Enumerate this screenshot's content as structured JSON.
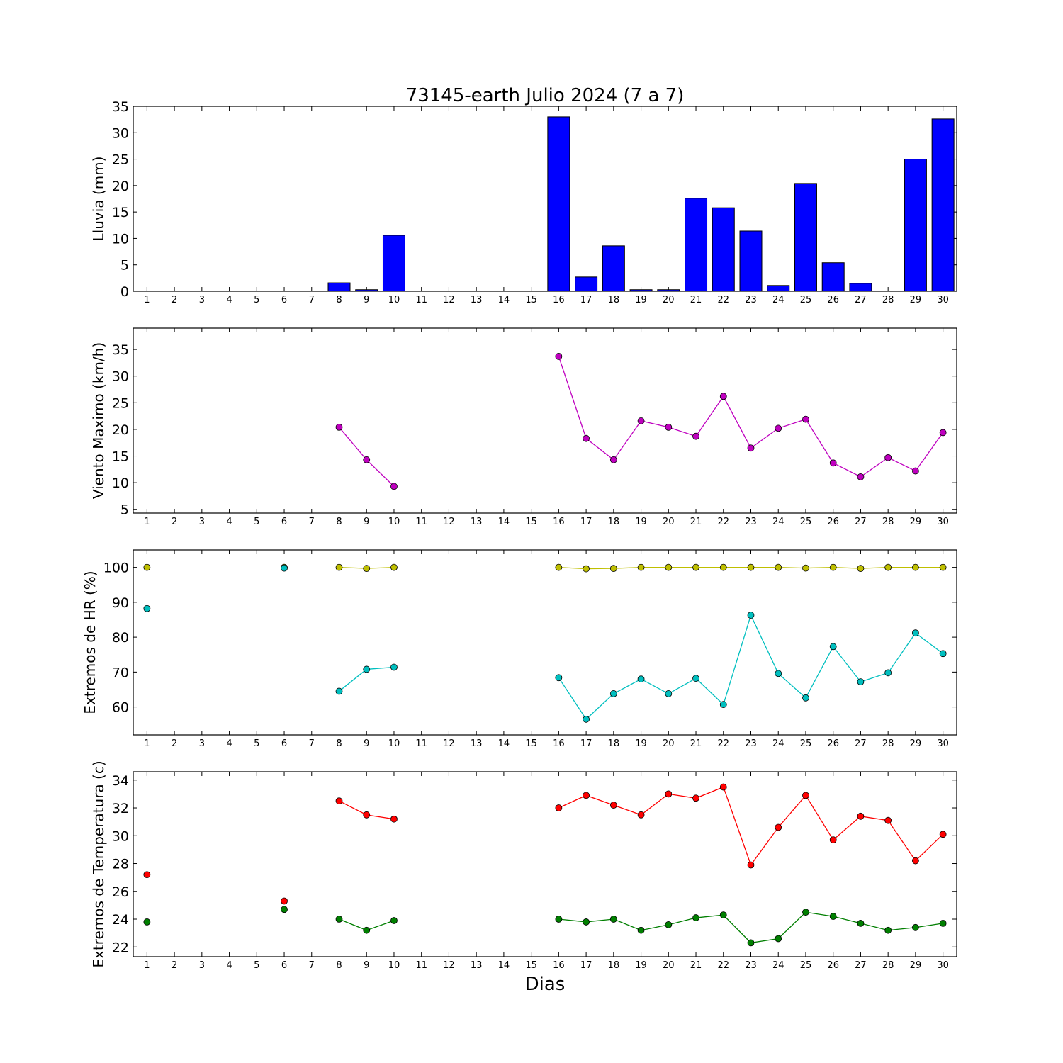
{
  "title": "73145-earth Julio 2024  (7 a 7)",
  "xlabel": "Dias",
  "chart_data": [
    {
      "type": "bar",
      "ylabel": "Lluvia (mm)",
      "ylim": [
        0,
        35
      ],
      "yticks": [
        0,
        5,
        10,
        15,
        20,
        25,
        30,
        35
      ],
      "xticks": [
        1,
        2,
        3,
        4,
        5,
        6,
        7,
        8,
        9,
        10,
        11,
        12,
        13,
        14,
        15,
        16,
        17,
        18,
        19,
        20,
        21,
        22,
        23,
        24,
        25,
        26,
        27,
        28,
        29,
        30
      ],
      "xlim": [
        0.5,
        30.5
      ],
      "color": "#0000ff",
      "x": [
        1,
        2,
        3,
        4,
        5,
        6,
        7,
        8,
        9,
        10,
        11,
        12,
        13,
        14,
        15,
        16,
        17,
        18,
        19,
        20,
        21,
        22,
        23,
        24,
        25,
        26,
        27,
        28,
        29,
        30
      ],
      "values": [
        0,
        0,
        0,
        0,
        0,
        0,
        0,
        1.6,
        0.3,
        10.6,
        0,
        0,
        0,
        0,
        0,
        33.0,
        2.7,
        8.6,
        0.3,
        0.3,
        17.6,
        15.8,
        11.4,
        1.1,
        20.4,
        5.4,
        1.5,
        0,
        25.0,
        32.6
      ]
    },
    {
      "type": "line",
      "ylabel": "Viento Maximo (km/h)",
      "ylim": [
        4.3,
        39
      ],
      "yticks": [
        5,
        10,
        15,
        20,
        25,
        30,
        35
      ],
      "xticks": [
        1,
        2,
        3,
        4,
        5,
        6,
        7,
        8,
        9,
        10,
        11,
        12,
        13,
        14,
        15,
        16,
        17,
        18,
        19,
        20,
        21,
        22,
        23,
        24,
        25,
        26,
        27,
        28,
        29,
        30
      ],
      "xlim": [
        0.5,
        30.5
      ],
      "series": [
        {
          "color": "#bf00bf",
          "points": [
            [
              8,
              20.4
            ],
            [
              9,
              14.3
            ],
            [
              10,
              9.3
            ],
            [
              16,
              33.7
            ],
            [
              17,
              18.3
            ],
            [
              18,
              14.3
            ],
            [
              19,
              21.6
            ],
            [
              20,
              20.4
            ],
            [
              21,
              18.7
            ],
            [
              22,
              26.2
            ],
            [
              23,
              16.5
            ],
            [
              24,
              20.2
            ],
            [
              25,
              21.9
            ],
            [
              26,
              13.7
            ],
            [
              27,
              11.1
            ],
            [
              28,
              14.7
            ],
            [
              29,
              12.2
            ],
            [
              30,
              19.4
            ]
          ]
        }
      ]
    },
    {
      "type": "line",
      "ylabel": "Extremos de HR (%)",
      "ylim": [
        52,
        105
      ],
      "yticks": [
        60,
        70,
        80,
        90,
        100
      ],
      "xticks": [
        1,
        2,
        3,
        4,
        5,
        6,
        7,
        8,
        9,
        10,
        11,
        12,
        13,
        14,
        15,
        16,
        17,
        18,
        19,
        20,
        21,
        22,
        23,
        24,
        25,
        26,
        27,
        28,
        29,
        30
      ],
      "xlim": [
        0.5,
        30.5
      ],
      "series": [
        {
          "color": "#bfbf00",
          "points": [
            [
              1,
              100
            ],
            [
              6,
              100
            ],
            [
              8,
              100
            ],
            [
              9,
              99.7
            ],
            [
              10,
              100
            ],
            [
              16,
              100
            ],
            [
              17,
              99.6
            ],
            [
              18,
              99.7
            ],
            [
              19,
              100
            ],
            [
              20,
              100
            ],
            [
              21,
              100
            ],
            [
              22,
              100
            ],
            [
              23,
              100
            ],
            [
              24,
              100
            ],
            [
              25,
              99.8
            ],
            [
              26,
              100
            ],
            [
              27,
              99.7
            ],
            [
              28,
              100
            ],
            [
              29,
              100
            ],
            [
              30,
              100
            ]
          ]
        },
        {
          "color": "#00bfbf",
          "points": [
            [
              1,
              88.2
            ],
            [
              6,
              99.8
            ],
            [
              8,
              64.5
            ],
            [
              9,
              70.8
            ],
            [
              10,
              71.4
            ],
            [
              16,
              68.4
            ],
            [
              17,
              56.5
            ],
            [
              18,
              63.8
            ],
            [
              19,
              68.0
            ],
            [
              20,
              63.8
            ],
            [
              21,
              68.2
            ],
            [
              22,
              60.7
            ],
            [
              23,
              86.3
            ],
            [
              24,
              69.6
            ],
            [
              25,
              62.6
            ],
            [
              26,
              77.3
            ],
            [
              27,
              67.2
            ],
            [
              28,
              69.8
            ],
            [
              29,
              81.2
            ],
            [
              30,
              75.3
            ]
          ]
        }
      ]
    },
    {
      "type": "line",
      "ylabel": "Extremos de Temperatura (c)",
      "ylim": [
        21.3,
        34.6
      ],
      "yticks": [
        22,
        24,
        26,
        28,
        30,
        32,
        34
      ],
      "xticks": [
        1,
        2,
        3,
        4,
        5,
        6,
        7,
        8,
        9,
        10,
        11,
        12,
        13,
        14,
        15,
        16,
        17,
        18,
        19,
        20,
        21,
        22,
        23,
        24,
        25,
        26,
        27,
        28,
        29,
        30
      ],
      "xlim": [
        0.5,
        30.5
      ],
      "series": [
        {
          "color": "#ff0000",
          "points": [
            [
              1,
              27.2
            ],
            [
              6,
              25.3
            ],
            [
              8,
              32.5
            ],
            [
              9,
              31.5
            ],
            [
              10,
              31.2
            ],
            [
              16,
              32.0
            ],
            [
              17,
              32.9
            ],
            [
              18,
              32.2
            ],
            [
              19,
              31.5
            ],
            [
              20,
              33.0
            ],
            [
              21,
              32.7
            ],
            [
              22,
              33.5
            ],
            [
              23,
              27.9
            ],
            [
              24,
              30.6
            ],
            [
              25,
              32.9
            ],
            [
              26,
              29.7
            ],
            [
              27,
              31.4
            ],
            [
              28,
              31.1
            ],
            [
              29,
              28.2
            ],
            [
              30,
              30.1
            ]
          ]
        },
        {
          "color": "#007f00",
          "points": [
            [
              1,
              23.8
            ],
            [
              6,
              24.7
            ],
            [
              8,
              24.0
            ],
            [
              9,
              23.2
            ],
            [
              10,
              23.9
            ],
            [
              16,
              24.0
            ],
            [
              17,
              23.8
            ],
            [
              18,
              24.0
            ],
            [
              19,
              23.2
            ],
            [
              20,
              23.6
            ],
            [
              21,
              24.1
            ],
            [
              22,
              24.3
            ],
            [
              23,
              22.3
            ],
            [
              24,
              22.6
            ],
            [
              25,
              24.5
            ],
            [
              26,
              24.2
            ],
            [
              27,
              23.7
            ],
            [
              28,
              23.2
            ],
            [
              29,
              23.4
            ],
            [
              30,
              23.7
            ]
          ]
        }
      ]
    }
  ]
}
